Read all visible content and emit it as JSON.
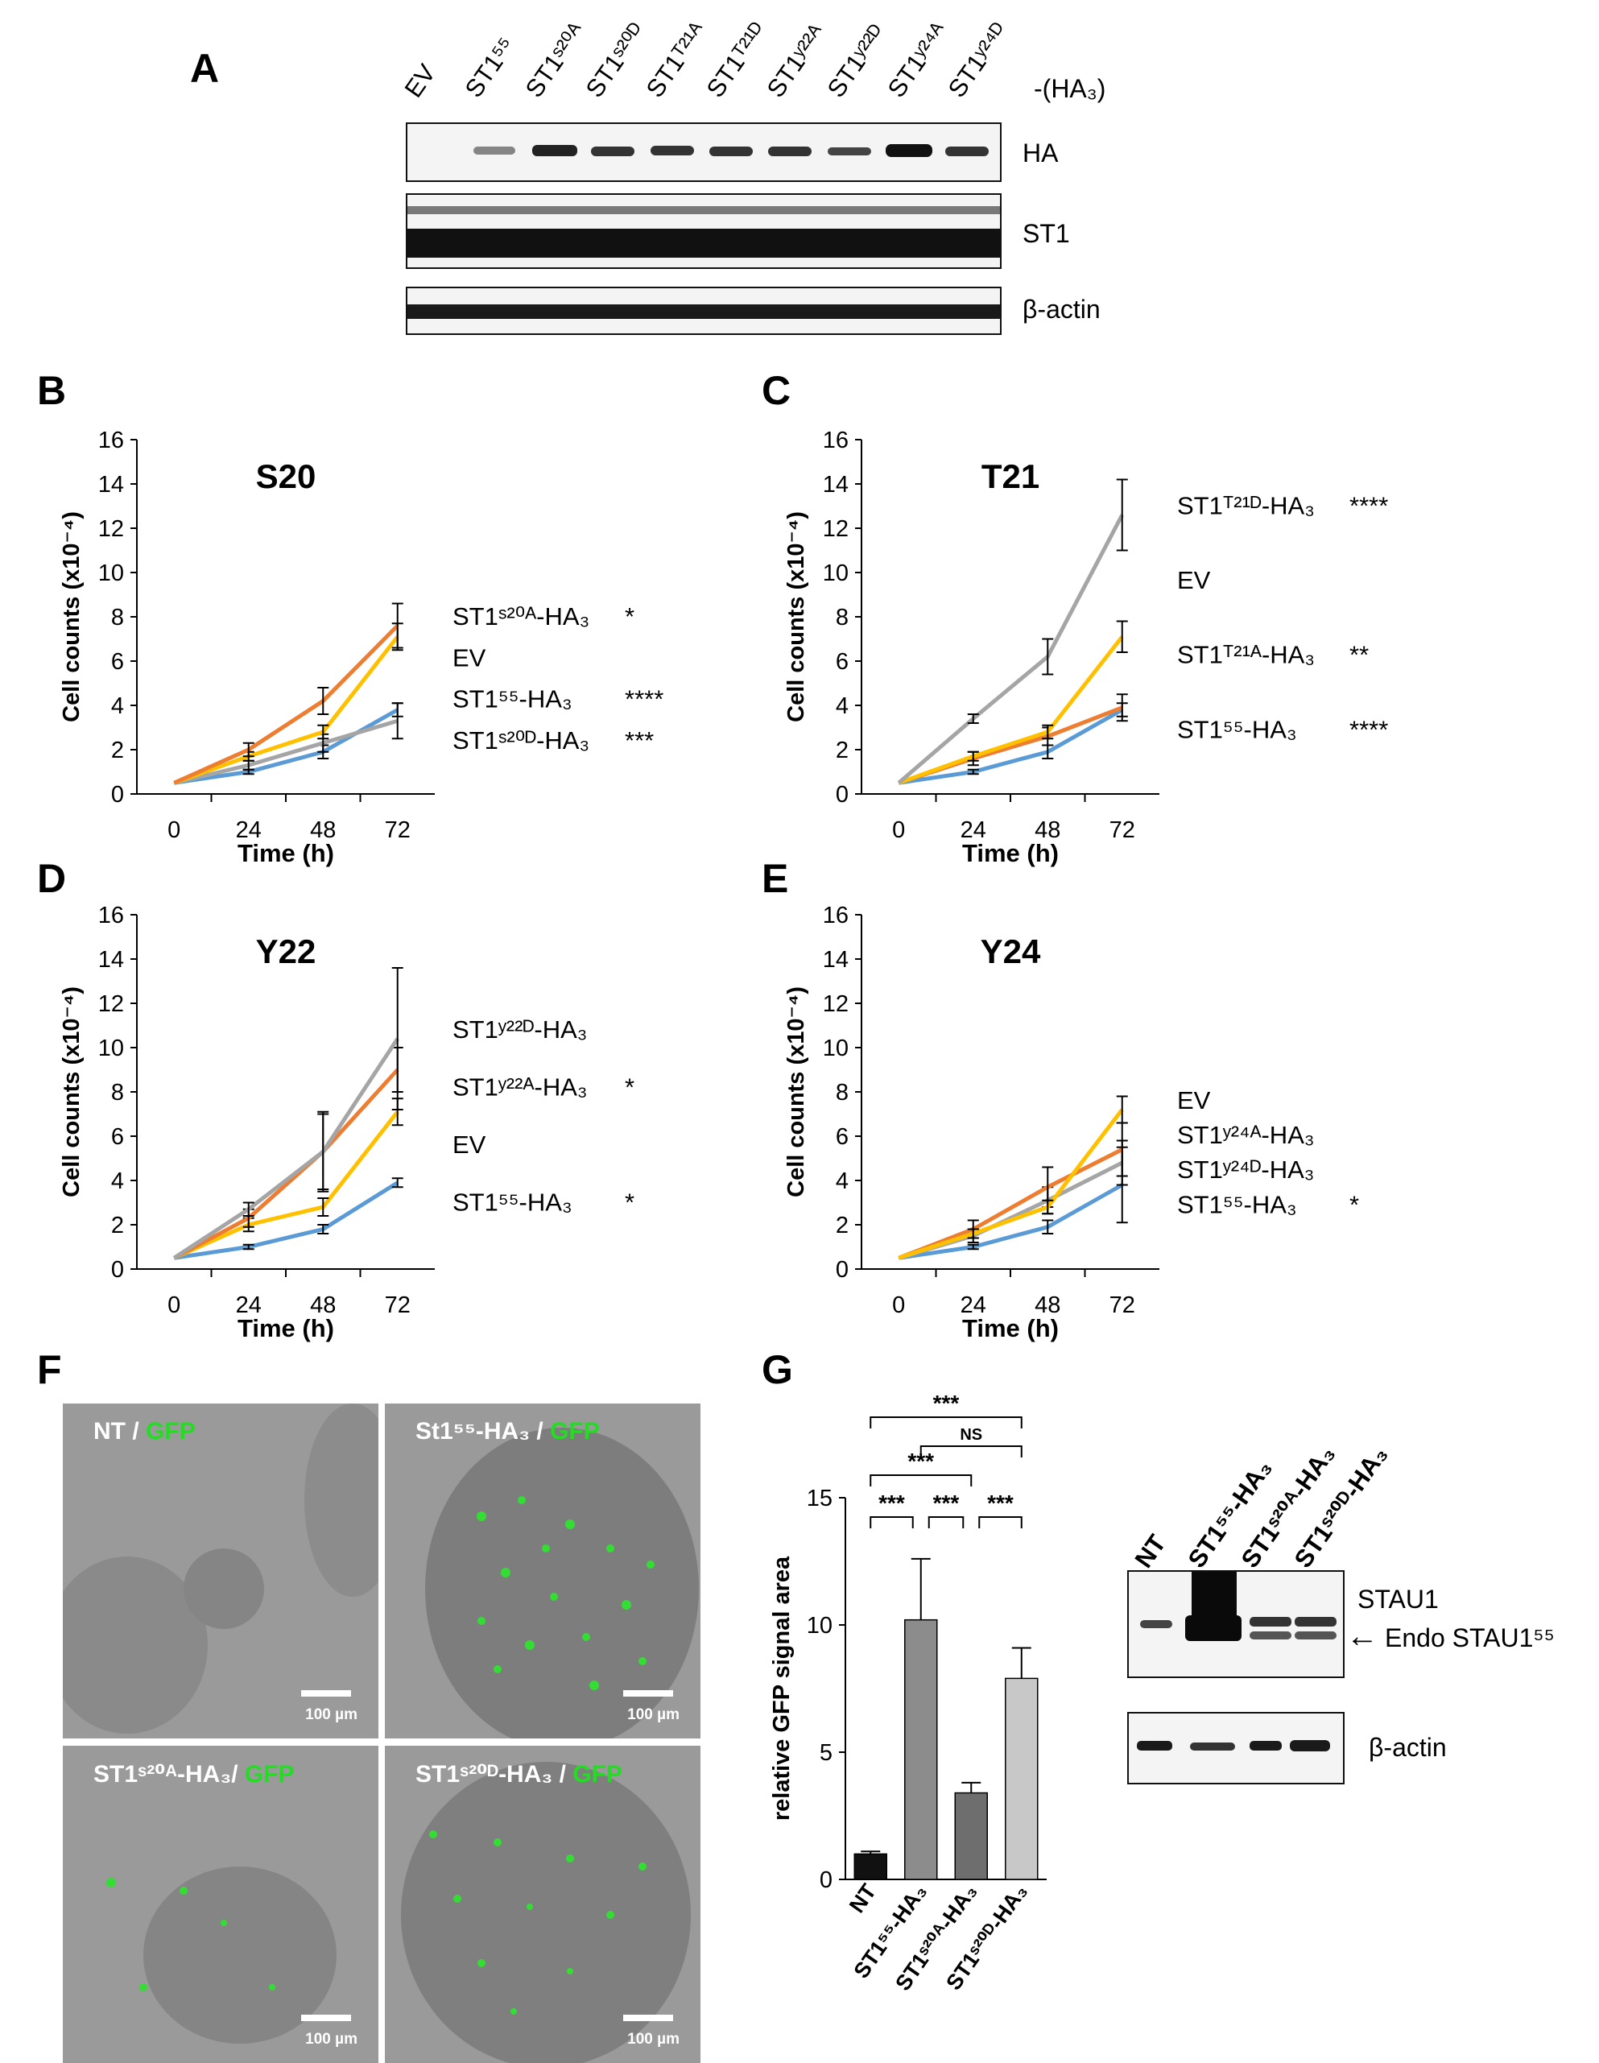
{
  "panels": {
    "A": "A",
    "B": "B",
    "C": "C",
    "D": "D",
    "E": "E",
    "F": "F",
    "G": "G"
  },
  "panel_a": {
    "lanes": [
      "EV",
      "ST1⁵⁵",
      "ST1ˢ²⁰ᴬ",
      "ST1ˢ²⁰ᴰ",
      "ST1ᵀ²¹ᴬ",
      "ST1ᵀ²¹ᴰ",
      "ST1ʸ²²ᴬ",
      "ST1ʸ²²ᴰ",
      "ST1ʸ²⁴ᴬ",
      "ST1ʸ²⁴ᴰ"
    ],
    "tag": "-(HA₃)",
    "blots": [
      "HA",
      "ST1",
      "β-actin"
    ]
  },
  "chart_data": [
    {
      "type": "line",
      "panel": "B",
      "title": "S20",
      "xlabel": "Time (h)",
      "ylabel": "Cell counts (x10⁻⁴)",
      "x": [
        0,
        24,
        48,
        72
      ],
      "xticks": [
        "0",
        "24",
        "48",
        "72"
      ],
      "yticks": [
        "0",
        "2",
        "4",
        "6",
        "8",
        "10",
        "12",
        "14",
        "16"
      ],
      "ylim": [
        0,
        16
      ],
      "series": [
        {
          "name": "ST1⁵⁵-HA₃",
          "color": "#5b9bd5",
          "values": [
            0.5,
            1.0,
            1.9,
            3.8
          ],
          "err": [
            0,
            0.1,
            0.3,
            0.3
          ]
        },
        {
          "name": "ST1ˢ²⁰ᴰ-HA₃",
          "color": "#a5a5a5",
          "values": [
            0.5,
            1.3,
            2.3,
            3.3
          ],
          "err": [
            0,
            0.2,
            0.4,
            0.8
          ]
        },
        {
          "name": "EV",
          "color": "#ffc000",
          "values": [
            0.5,
            1.7,
            2.8,
            7.1
          ],
          "err": [
            0,
            0.2,
            0.3,
            0.6
          ]
        },
        {
          "name": "ST1ˢ²⁰ᴬ-HA₃",
          "color": "#ed7d31",
          "values": [
            0.5,
            2.0,
            4.2,
            7.6
          ],
          "err": [
            0,
            0.3,
            0.6,
            1.0
          ]
        }
      ],
      "annotations": [
        {
          "label": "ST1ˢ²⁰ᴬ-HA₃",
          "sig": "*"
        },
        {
          "label": "EV",
          "sig": ""
        },
        {
          "label": "ST1⁵⁵-HA₃",
          "sig": "****"
        },
        {
          "label": "ST1ˢ²⁰ᴰ-HA₃",
          "sig": "***"
        }
      ]
    },
    {
      "type": "line",
      "panel": "C",
      "title": "T21",
      "xlabel": "Time (h)",
      "ylabel": "Cell counts (x10⁻⁴)",
      "x": [
        0,
        24,
        48,
        72
      ],
      "xticks": [
        "0",
        "24",
        "48",
        "72"
      ],
      "yticks": [
        "0",
        "2",
        "4",
        "6",
        "8",
        "10",
        "12",
        "14",
        "16"
      ],
      "ylim": [
        0,
        16
      ],
      "series": [
        {
          "name": "ST1⁵⁵-HA₃",
          "color": "#5b9bd5",
          "values": [
            0.5,
            1.0,
            1.9,
            3.8
          ],
          "err": [
            0,
            0.1,
            0.3,
            0.3
          ]
        },
        {
          "name": "ST1ᵀ²¹ᴬ-HA₃",
          "color": "#ed7d31",
          "values": [
            0.5,
            1.6,
            2.6,
            3.9
          ],
          "err": [
            0,
            0.3,
            0.4,
            0.6
          ]
        },
        {
          "name": "EV",
          "color": "#ffc000",
          "values": [
            0.5,
            1.7,
            2.8,
            7.1
          ],
          "err": [
            0,
            0.2,
            0.3,
            0.7
          ]
        },
        {
          "name": "ST1ᵀ²¹ᴰ-HA₃",
          "color": "#a5a5a5",
          "values": [
            0.5,
            3.4,
            6.2,
            12.6
          ],
          "err": [
            0,
            0.2,
            0.8,
            1.6
          ]
        }
      ],
      "annotations": [
        {
          "label": "ST1ᵀ²¹ᴰ-HA₃",
          "sig": "****"
        },
        {
          "label": "EV",
          "sig": ""
        },
        {
          "label": "ST1ᵀ²¹ᴬ-HA₃",
          "sig": "**"
        },
        {
          "label": "ST1⁵⁵-HA₃",
          "sig": "****"
        }
      ]
    },
    {
      "type": "line",
      "panel": "D",
      "title": "Y22",
      "xlabel": "Time (h)",
      "ylabel": "Cell counts (x10⁻⁴)",
      "x": [
        0,
        24,
        48,
        72
      ],
      "xticks": [
        "0",
        "24",
        "48",
        "72"
      ],
      "yticks": [
        "0",
        "2",
        "4",
        "6",
        "8",
        "10",
        "12",
        "14",
        "16"
      ],
      "ylim": [
        0,
        16
      ],
      "series": [
        {
          "name": "ST1⁵⁵-HA₃",
          "color": "#5b9bd5",
          "values": [
            0.5,
            1.0,
            1.8,
            3.9
          ],
          "err": [
            0,
            0.1,
            0.2,
            0.2
          ]
        },
        {
          "name": "EV",
          "color": "#ffc000",
          "values": [
            0.5,
            2.0,
            2.8,
            7.1
          ],
          "err": [
            0,
            0.3,
            0.4,
            0.6
          ]
        },
        {
          "name": "ST1ʸ²²ᴬ-HA₃",
          "color": "#ed7d31",
          "values": [
            0.5,
            2.3,
            5.3,
            9.0
          ],
          "err": [
            0,
            0.4,
            1.7,
            1.0
          ]
        },
        {
          "name": "ST1ʸ²²ᴰ-HA₃",
          "color": "#a5a5a5",
          "values": [
            0.5,
            2.7,
            5.3,
            10.4
          ],
          "err": [
            0,
            0.3,
            1.8,
            3.2
          ]
        }
      ],
      "annotations": [
        {
          "label": "ST1ʸ²²ᴰ-HA₃",
          "sig": ""
        },
        {
          "label": "ST1ʸ²²ᴬ-HA₃",
          "sig": "*"
        },
        {
          "label": "EV",
          "sig": ""
        },
        {
          "label": "ST1⁵⁵-HA₃",
          "sig": "*"
        }
      ]
    },
    {
      "type": "line",
      "panel": "E",
      "title": "Y24",
      "xlabel": "Time (h)",
      "ylabel": "Cell counts (x10⁻⁴)",
      "x": [
        0,
        24,
        48,
        72
      ],
      "xticks": [
        "0",
        "24",
        "48",
        "72"
      ],
      "yticks": [
        "0",
        "2",
        "4",
        "6",
        "8",
        "10",
        "12",
        "14",
        "16"
      ],
      "ylim": [
        0,
        16
      ],
      "series": [
        {
          "name": "ST1⁵⁵-HA₃",
          "color": "#5b9bd5",
          "values": [
            0.5,
            1.0,
            1.9,
            3.8
          ],
          "err": [
            0,
            0.1,
            0.3,
            1.7
          ]
        },
        {
          "name": "ST1ʸ²⁴ᴰ-HA₃",
          "color": "#a5a5a5",
          "values": [
            0.5,
            1.5,
            3.1,
            4.8
          ],
          "err": [
            0,
            0.3,
            0.6,
            1.0
          ]
        },
        {
          "name": "ST1ʸ²⁴ᴬ-HA₃",
          "color": "#ed7d31",
          "values": [
            0.5,
            1.8,
            3.7,
            5.4
          ],
          "err": [
            0,
            0.4,
            0.9,
            1.2
          ]
        },
        {
          "name": "EV",
          "color": "#ffc000",
          "values": [
            0.5,
            1.6,
            2.8,
            7.2
          ],
          "err": [
            0,
            0.2,
            0.3,
            0.6
          ]
        }
      ],
      "annotations": [
        {
          "label": "EV",
          "sig": ""
        },
        {
          "label": "ST1ʸ²⁴ᴬ-HA₃",
          "sig": ""
        },
        {
          "label": "ST1ʸ²⁴ᴰ-HA₃",
          "sig": ""
        },
        {
          "label": "ST1⁵⁵-HA₃",
          "sig": "*"
        }
      ]
    },
    {
      "type": "bar",
      "panel": "G",
      "ylabel": "relative GFP signal area",
      "categories": [
        "NT",
        "ST1⁵⁵-HA₃",
        "ST1ˢ²⁰ᴬ-HA₃",
        "ST1ˢ²⁰ᴰ-HA₃"
      ],
      "values": [
        1.0,
        10.2,
        3.4,
        7.9
      ],
      "err": [
        0.1,
        2.4,
        0.4,
        1.2
      ],
      "colors": [
        "#111111",
        "#8c8c8c",
        "#6e6e6e",
        "#c8c8c8"
      ],
      "yticks": [
        "0",
        "5",
        "10",
        "15"
      ],
      "ylim": [
        0,
        15
      ],
      "significance": [
        {
          "from": 0,
          "to": 3,
          "label": "***"
        },
        {
          "from": 1,
          "to": 3,
          "label": "NS"
        },
        {
          "from": 0,
          "to": 2,
          "label": "***"
        },
        {
          "from": 0,
          "to": 1,
          "label": "***"
        },
        {
          "from": 1,
          "to": 2,
          "label": "***"
        },
        {
          "from": 2,
          "to": 3,
          "label": "***"
        }
      ]
    }
  ],
  "panel_f": {
    "images": [
      {
        "label": "NT / ",
        "gfp": "GFP",
        "scale": "100 µm"
      },
      {
        "label": "St1⁵⁵-HA₃ / ",
        "gfp": "GFP",
        "scale": "100 µm"
      },
      {
        "label": "ST1ˢ²⁰ᴬ-HA₃/ ",
        "gfp": "GFP",
        "scale": "100 µm"
      },
      {
        "label": "ST1ˢ²⁰ᴰ-HA₃ / ",
        "gfp": "GFP",
        "scale": "100 µm"
      }
    ]
  },
  "panel_g_blot": {
    "lanes": [
      "NT",
      "ST1⁵⁵-HA₃",
      "ST1ˢ²⁰ᴬ-HA₃",
      "ST1ˢ²⁰ᴰ-HA₃"
    ],
    "labels": {
      "stau1": "STAU1",
      "endo": "Endo STAU1⁵⁵",
      "actin": "β-actin",
      "arrow": "←"
    }
  }
}
